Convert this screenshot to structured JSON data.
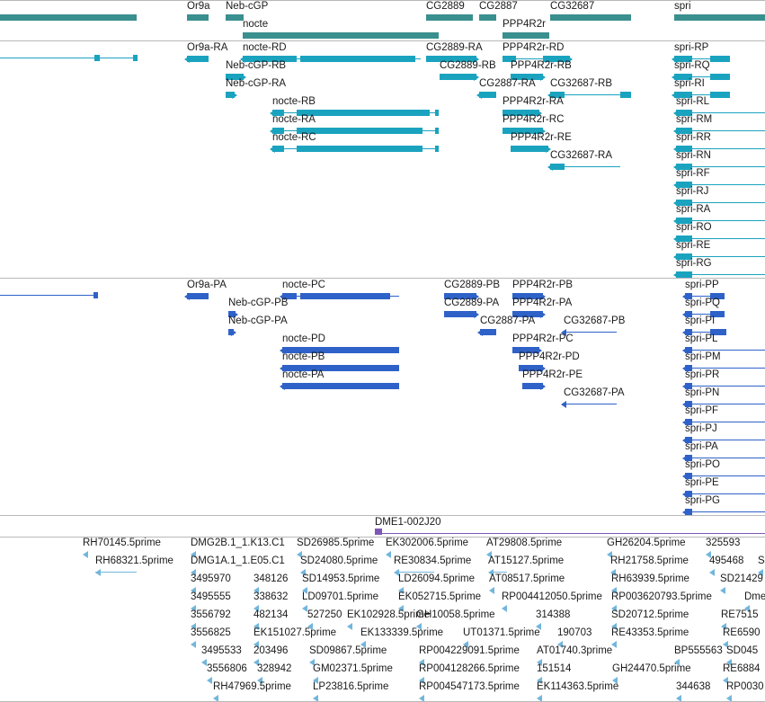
{
  "colors": {
    "gene": "#3a8f8f",
    "transcript": "#1aa3bf",
    "protein": "#2f62c8",
    "clone": "#7e57b5",
    "est": "#72b6dc"
  },
  "genes": [
    {
      "label": "Or9a"
    },
    {
      "label": "Neb-cGP"
    },
    {
      "label": "nocte"
    },
    {
      "label": "CG2889"
    },
    {
      "label": "CG2887"
    },
    {
      "label": "PPP4R2r"
    },
    {
      "label": "CG32687"
    },
    {
      "label": "spri"
    }
  ],
  "transcripts": [
    {
      "label": "Or9a-RA"
    },
    {
      "label": "nocte-RD"
    },
    {
      "label": "CG2889-RA"
    },
    {
      "label": "PPP4R2r-RD"
    },
    {
      "label": "spri-RP"
    },
    {
      "label": "Neb-cGP-RB"
    },
    {
      "label": "CG2889-RB"
    },
    {
      "label": "PPP4R2r-RB"
    },
    {
      "label": "spri-RQ"
    },
    {
      "label": "Neb-cGP-RA"
    },
    {
      "label": "CG2887-RA"
    },
    {
      "label": "CG32687-RB"
    },
    {
      "label": "spri-RI"
    },
    {
      "label": "nocte-RB"
    },
    {
      "label": "PPP4R2r-RA"
    },
    {
      "label": "spri-RL"
    },
    {
      "label": "nocte-RA"
    },
    {
      "label": "PPP4R2r-RC"
    },
    {
      "label": "spri-RM"
    },
    {
      "label": "nocte-RC"
    },
    {
      "label": "PPP4R2r-RE"
    },
    {
      "label": "spri-RR"
    },
    {
      "label": "CG32687-RA"
    },
    {
      "label": "spri-RN"
    },
    {
      "label": "spri-RF"
    },
    {
      "label": "spri-RJ"
    },
    {
      "label": "spri-RA"
    },
    {
      "label": "spri-RO"
    },
    {
      "label": "spri-RE"
    },
    {
      "label": "spri-RG"
    }
  ],
  "proteins": [
    {
      "label": "Or9a-PA"
    },
    {
      "label": "nocte-PC"
    },
    {
      "label": "CG2889-PB"
    },
    {
      "label": "PPP4R2r-PB"
    },
    {
      "label": "spri-PP"
    },
    {
      "label": "Neb-cGP-PB"
    },
    {
      "label": "CG2889-PA"
    },
    {
      "label": "PPP4R2r-PA"
    },
    {
      "label": "spri-PQ"
    },
    {
      "label": "Neb-cGP-PA"
    },
    {
      "label": "CG2887-PA"
    },
    {
      "label": "CG32687-PB"
    },
    {
      "label": "spri-PI"
    },
    {
      "label": "nocte-PD"
    },
    {
      "label": "PPP4R2r-PC"
    },
    {
      "label": "spri-PL"
    },
    {
      "label": "nocte-PB"
    },
    {
      "label": "PPP4R2r-PD"
    },
    {
      "label": "spri-PM"
    },
    {
      "label": "nocte-PA"
    },
    {
      "label": "PPP4R2r-PE"
    },
    {
      "label": "spri-PR"
    },
    {
      "label": "CG32687-PA"
    },
    {
      "label": "spri-PN"
    },
    {
      "label": "spri-PF"
    },
    {
      "label": "spri-PJ"
    },
    {
      "label": "spri-PA"
    },
    {
      "label": "spri-PO"
    },
    {
      "label": "spri-PE"
    },
    {
      "label": "spri-PG"
    }
  ],
  "clone": {
    "label": "DME1-002J20"
  },
  "ests": [
    {
      "label": "RH70145.5prime"
    },
    {
      "label": "DMG2B.1_1.K13.C1"
    },
    {
      "label": "SD26985.5prime"
    },
    {
      "label": "EK302006.5prime"
    },
    {
      "label": "AT29808.5prime"
    },
    {
      "label": "GH26204.5prime"
    },
    {
      "label": "325593"
    },
    {
      "label": "RH68321.5prime"
    },
    {
      "label": "DMG1A.1_1.E05.C1"
    },
    {
      "label": "SD24080.5prime"
    },
    {
      "label": "RE30834.5prime"
    },
    {
      "label": "AT15127.5prime"
    },
    {
      "label": "RH21758.5prime"
    },
    {
      "label": "495468"
    },
    {
      "label": "S"
    },
    {
      "label": "3495970"
    },
    {
      "label": "348126"
    },
    {
      "label": "SD14953.5prime"
    },
    {
      "label": "LD26094.5prime"
    },
    {
      "label": "AT08517.5prime"
    },
    {
      "label": "RH63939.5prime"
    },
    {
      "label": "SD21429"
    },
    {
      "label": "3495555"
    },
    {
      "label": "338632"
    },
    {
      "label": "LD09701.5prime"
    },
    {
      "label": "EK052715.5prime"
    },
    {
      "label": "RP004412050.5prime"
    },
    {
      "label": "RP003620793.5prime"
    },
    {
      "label": "Dme"
    },
    {
      "label": "3556792"
    },
    {
      "label": "482134"
    },
    {
      "label": "527250"
    },
    {
      "label": "EK102928.5prime"
    },
    {
      "label": "GH10058.5prime"
    },
    {
      "label": "314388"
    },
    {
      "label": "SD20712.5prime"
    },
    {
      "label": "RE7515"
    },
    {
      "label": "3556825"
    },
    {
      "label": "EK151027.5prime"
    },
    {
      "label": "EK133339.5prime"
    },
    {
      "label": "UT01371.5prime"
    },
    {
      "label": "190703"
    },
    {
      "label": "RE43353.5prime"
    },
    {
      "label": "RE6590"
    },
    {
      "label": "3495533"
    },
    {
      "label": "203496"
    },
    {
      "label": "SD09867.5prime"
    },
    {
      "label": "RP004229091.5prime"
    },
    {
      "label": "AT01740.3prime"
    },
    {
      "label": "BP555563"
    },
    {
      "label": "SD045"
    },
    {
      "label": "3556806"
    },
    {
      "label": "328942"
    },
    {
      "label": "GM02371.5prime"
    },
    {
      "label": "RP004128266.5prime"
    },
    {
      "label": "151514"
    },
    {
      "label": "GH24470.5prime"
    },
    {
      "label": "RE6884"
    },
    {
      "label": "RH47969.5prime"
    },
    {
      "label": "LP23816.5prime"
    },
    {
      "label": "RP004547173.5prime"
    },
    {
      "label": "EK114363.5prime"
    },
    {
      "label": "344638"
    },
    {
      "label": "RP0030"
    }
  ]
}
